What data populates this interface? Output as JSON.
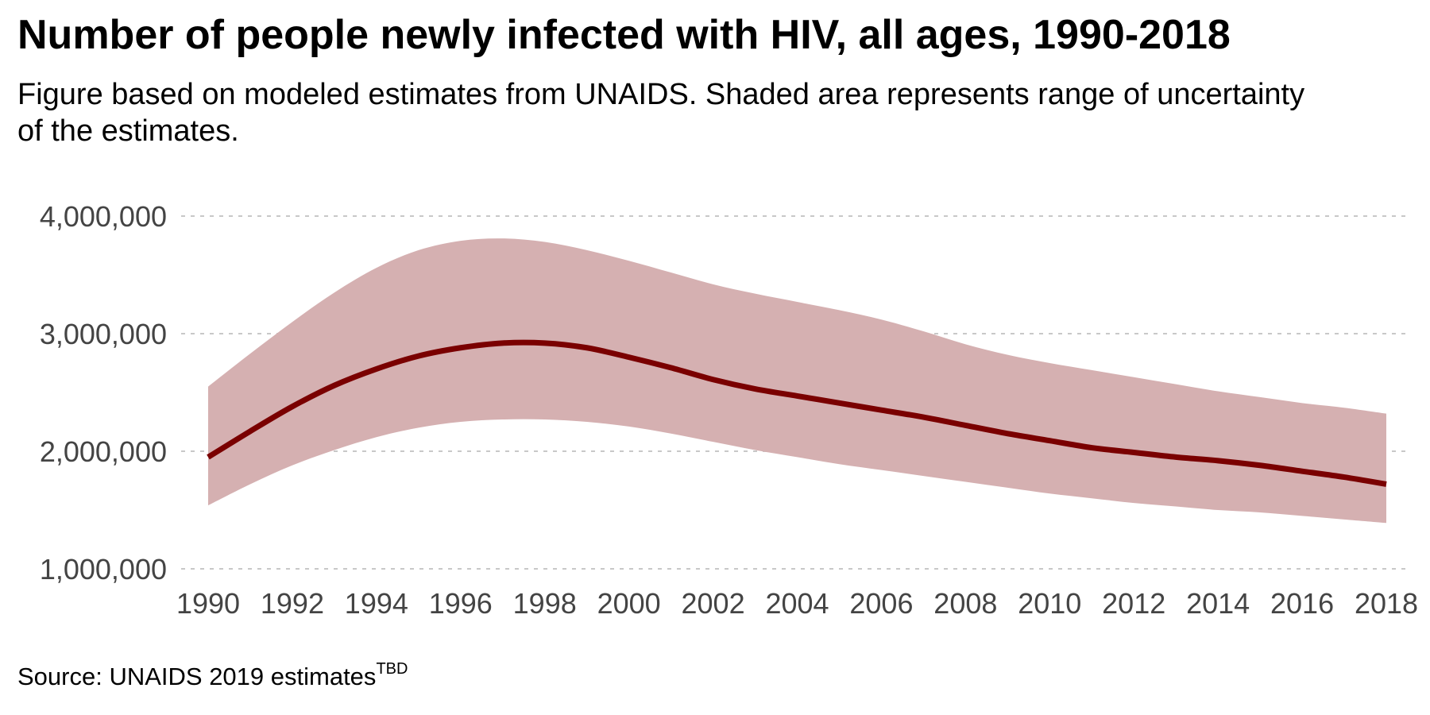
{
  "title": "Number of people newly infected with HIV, all ages, 1990-2018",
  "subtitle": "Figure based on modeled estimates from UNAIDS. Shaded area represents range of uncertainty of the estimates.",
  "source": {
    "text": "Source: UNAIDS 2019  estimates",
    "superscript": "TBD"
  },
  "colors": {
    "line": "#7a0000",
    "band": "#d5b0b1",
    "grid": "#c8c8c8",
    "tick_text": "#444444"
  },
  "chart_data": {
    "type": "line",
    "title": "Number of people newly infected with HIV, all ages, 1990-2018",
    "xlabel": "",
    "ylabel": "",
    "ylim": [
      1000000,
      4000000
    ],
    "xlim": [
      1990,
      2018
    ],
    "grid": "horizontal dashed",
    "x_ticks": [
      "1990",
      "1992",
      "1994",
      "1996",
      "1998",
      "2000",
      "2002",
      "2004",
      "2006",
      "2008",
      "2010",
      "2012",
      "2014",
      "2016",
      "2018"
    ],
    "y_ticks": [
      "1,000,000",
      "2,000,000",
      "3,000,000",
      "4,000,000"
    ],
    "y_tick_values": [
      1000000,
      2000000,
      3000000,
      4000000
    ],
    "x": [
      1990,
      1991,
      1992,
      1993,
      1994,
      1995,
      1996,
      1997,
      1998,
      1999,
      2000,
      2001,
      2002,
      2003,
      2004,
      2005,
      2006,
      2007,
      2008,
      2009,
      2010,
      2011,
      2012,
      2013,
      2014,
      2015,
      2016,
      2017,
      2018
    ],
    "series": [
      {
        "values": [
          1950000,
          2170000,
          2380000,
          2560000,
          2700000,
          2810000,
          2880000,
          2920000,
          2920000,
          2880000,
          2800000,
          2710000,
          2610000,
          2530000,
          2470000,
          2410000,
          2350000,
          2290000,
          2220000,
          2150000,
          2090000,
          2030000,
          1990000,
          1950000,
          1920000,
          1880000,
          1830000,
          1780000,
          1720000
        ]
      }
    ],
    "band": {
      "upper": [
        2550000,
        2830000,
        3100000,
        3350000,
        3560000,
        3710000,
        3790000,
        3810000,
        3780000,
        3710000,
        3620000,
        3520000,
        3420000,
        3340000,
        3270000,
        3200000,
        3120000,
        3020000,
        2910000,
        2820000,
        2750000,
        2690000,
        2630000,
        2570000,
        2510000,
        2460000,
        2410000,
        2370000,
        2320000
      ],
      "lower": [
        1540000,
        1720000,
        1880000,
        2010000,
        2120000,
        2200000,
        2250000,
        2270000,
        2270000,
        2250000,
        2210000,
        2150000,
        2080000,
        2010000,
        1950000,
        1890000,
        1840000,
        1790000,
        1740000,
        1690000,
        1640000,
        1600000,
        1560000,
        1530000,
        1500000,
        1480000,
        1450000,
        1420000,
        1390000
      ]
    }
  }
}
